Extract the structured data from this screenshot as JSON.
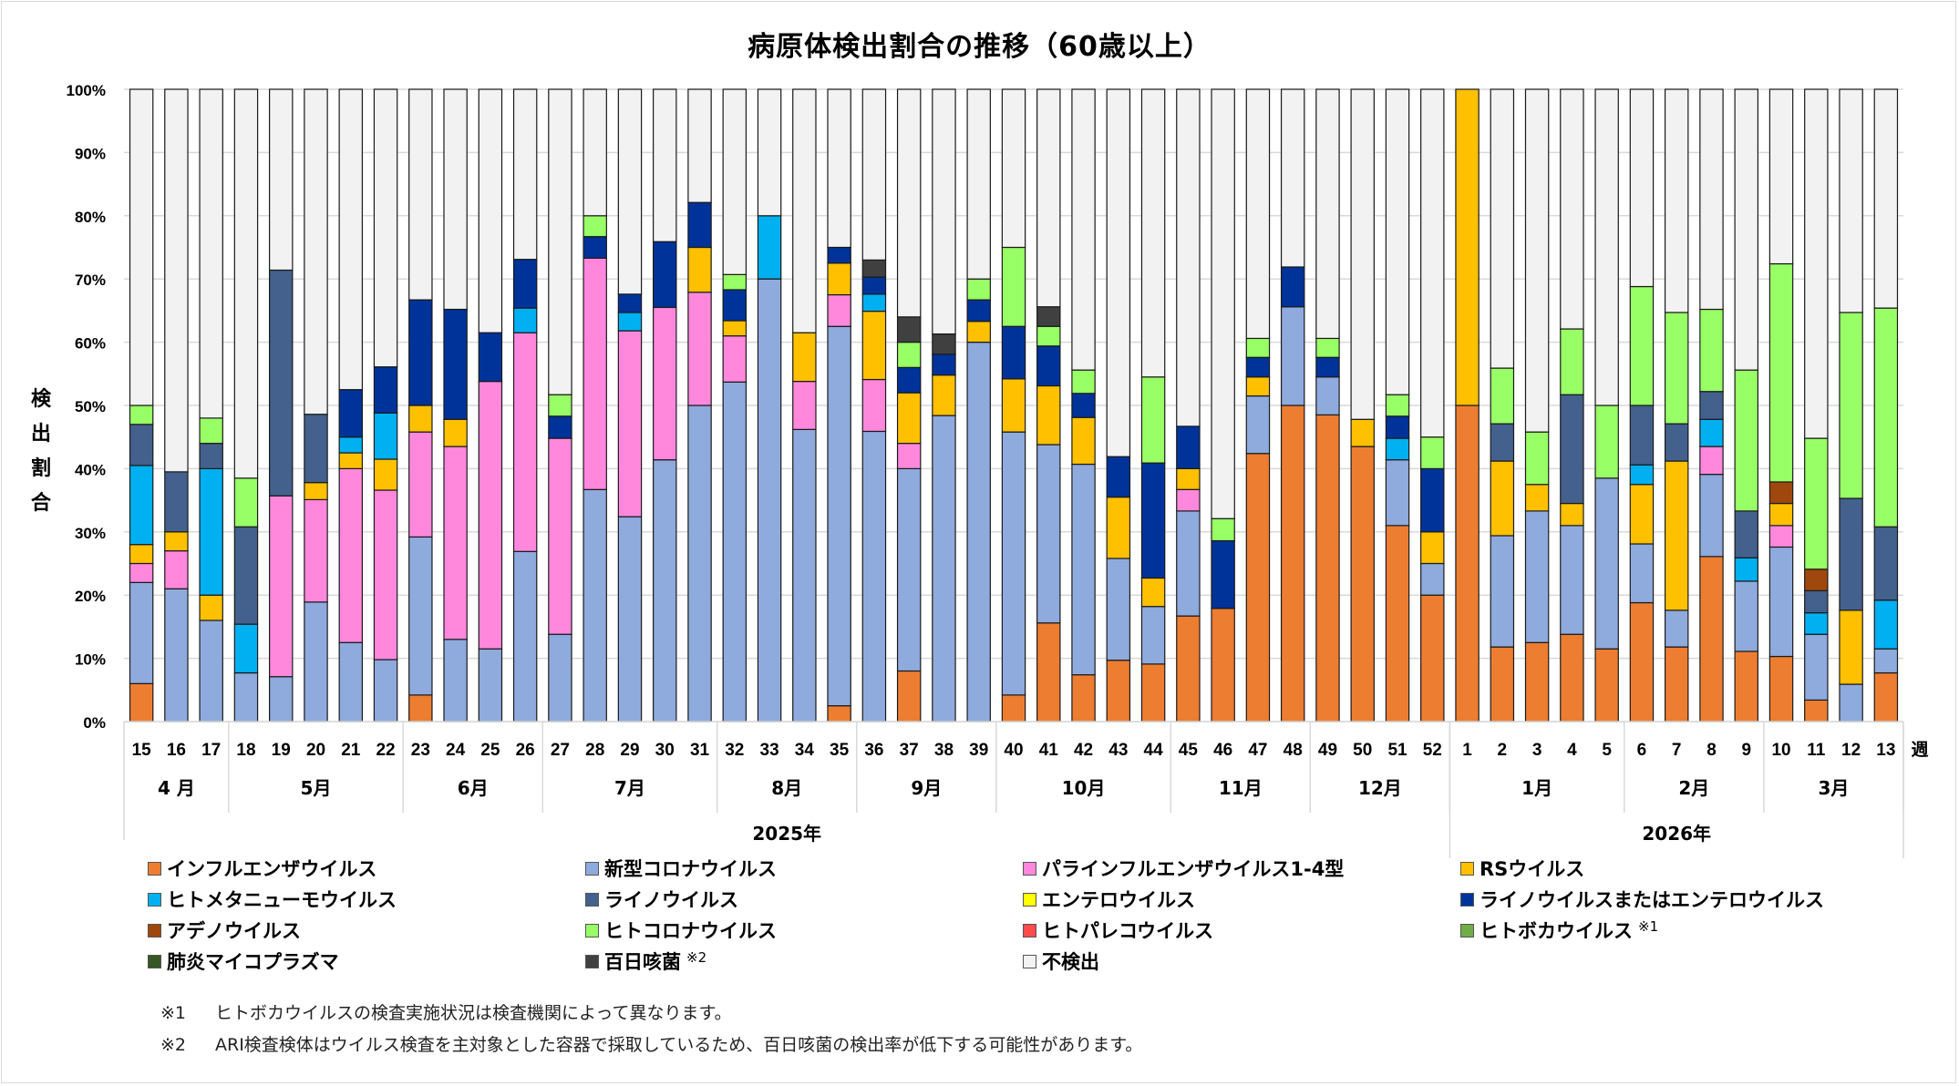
{
  "chart_data": {
    "type": "bar",
    "stacked": true,
    "title": "病原体検出割合の推移（60歳以上）",
    "ylabel": "検出割合",
    "xlabel": "週",
    "ylim": [
      0,
      100
    ],
    "yticks": [
      "0%",
      "10%",
      "20%",
      "30%",
      "40%",
      "50%",
      "60%",
      "70%",
      "80%",
      "90%",
      "100%"
    ],
    "grid": true,
    "legend_position": "bottom",
    "categories": [
      "15",
      "16",
      "17",
      "18",
      "19",
      "20",
      "21",
      "22",
      "23",
      "24",
      "25",
      "26",
      "27",
      "28",
      "29",
      "30",
      "31",
      "32",
      "33",
      "34",
      "35",
      "36",
      "37",
      "38",
      "39",
      "40",
      "41",
      "42",
      "43",
      "44",
      "45",
      "46",
      "47",
      "48",
      "49",
      "50",
      "51",
      "52",
      "1",
      "2",
      "3",
      "4",
      "5",
      "6",
      "7",
      "8",
      "9",
      "10",
      "11",
      "12",
      "13"
    ],
    "months": [
      {
        "label": "4 月",
        "weeks": 3
      },
      {
        "label": "5月",
        "weeks": 5
      },
      {
        "label": "6月",
        "weeks": 4
      },
      {
        "label": "7月",
        "weeks": 5
      },
      {
        "label": "8月",
        "weeks": 4
      },
      {
        "label": "9月",
        "weeks": 4
      },
      {
        "label": "10月",
        "weeks": 5
      },
      {
        "label": "11月",
        "weeks": 4
      },
      {
        "label": "12月",
        "weeks": 4
      },
      {
        "label": "1月",
        "weeks": 5
      },
      {
        "label": "2月",
        "weeks": 4
      },
      {
        "label": "3月",
        "weeks": 4
      }
    ],
    "years": [
      {
        "label": "2025年",
        "weeks": 38
      },
      {
        "label": "2026年",
        "weeks": 13
      }
    ],
    "series": [
      {
        "name": "インフルエンザウイルス",
        "color": "#ED7D31",
        "values": [
          6,
          0,
          0,
          0,
          0,
          0,
          0,
          0,
          4.2,
          0,
          0,
          0,
          0,
          0,
          0,
          0,
          0,
          0,
          0,
          0,
          2.5,
          0,
          8,
          0,
          0,
          4.2,
          15.6,
          7.4,
          9.7,
          9.1,
          16.7,
          17.9,
          42.4,
          50,
          48.5,
          43.5,
          31,
          20,
          50,
          11.8,
          12.5,
          13.8,
          11.5,
          18.8,
          11.8,
          26.1,
          11.1,
          10.3,
          3.4,
          0,
          7.7
        ]
      },
      {
        "name": "新型コロナウイルス",
        "color": "#8FAADC",
        "values": [
          16,
          21,
          16,
          7.7,
          7.1,
          18.9,
          12.5,
          9.8,
          25,
          13,
          11.5,
          26.9,
          13.8,
          36.7,
          32.4,
          41.4,
          50,
          53.7,
          70,
          46.2,
          60,
          45.9,
          32,
          48.4,
          60,
          41.6,
          28.2,
          33.3,
          16.1,
          9.1,
          16.6,
          0,
          9.1,
          15.6,
          6,
          0,
          10.4,
          5,
          0,
          17.6,
          20.8,
          17.2,
          27,
          9.3,
          5.8,
          13,
          11.1,
          17.3,
          10.4,
          5.9,
          3.8
        ]
      },
      {
        "name": "パラインフルエンザウイルス1-4型",
        "color": "#FF88DD",
        "values": [
          3,
          6,
          0,
          0,
          28.6,
          16.2,
          27.5,
          26.8,
          16.6,
          30.5,
          42.3,
          34.6,
          31,
          36.6,
          29.4,
          24.1,
          17.9,
          7.3,
          0,
          7.6,
          5,
          8.2,
          4,
          0,
          0,
          0,
          0,
          0,
          0,
          0,
          3.4,
          0,
          0,
          0,
          0,
          0,
          0,
          0,
          0,
          0,
          0,
          0,
          0,
          0,
          0,
          4.4,
          0,
          3.4,
          0,
          0,
          0
        ]
      },
      {
        "name": "RSウイルス",
        "color": "#FFC000",
        "values": [
          3,
          3,
          4,
          0,
          0,
          2.7,
          2.5,
          4.9,
          4.2,
          4.3,
          0,
          0,
          0,
          0,
          0,
          0,
          7.1,
          2.4,
          0,
          7.7,
          5,
          10.8,
          8,
          6.4,
          3.3,
          8.4,
          9.3,
          7.4,
          9.7,
          4.5,
          3.3,
          0,
          3,
          0,
          0,
          4.3,
          0,
          5,
          50,
          11.8,
          4.2,
          3.5,
          0,
          9.4,
          23.6,
          0,
          0,
          3.5,
          0,
          11.7,
          0
        ]
      },
      {
        "name": "ヒトメタニューモウイルス",
        "color": "#00B0F0",
        "values": [
          12.5,
          0,
          20,
          7.7,
          0,
          0,
          2.5,
          7.3,
          0,
          0,
          0,
          3.9,
          0,
          0,
          2.9,
          0,
          0,
          0,
          10,
          0,
          0,
          2.7,
          0,
          0,
          0,
          0,
          0,
          0,
          0,
          0,
          0,
          0,
          0,
          0,
          0,
          0,
          3.4,
          0,
          0,
          0,
          0,
          0,
          0,
          3.1,
          0,
          4.3,
          3.7,
          0,
          3.4,
          0,
          7.7
        ]
      },
      {
        "name": "ライノウイルス",
        "color": "#44608C",
        "values": [
          6.5,
          9.5,
          4,
          15.4,
          35.7,
          10.8,
          0,
          0,
          0,
          0,
          0,
          0,
          0,
          0,
          0,
          0,
          0,
          0,
          0,
          0,
          0,
          0,
          0,
          0,
          0,
          0,
          0,
          0,
          0,
          0,
          0,
          0,
          0,
          0,
          0,
          0,
          0,
          0,
          0,
          5.9,
          0,
          17.2,
          0,
          9.4,
          5.9,
          4.4,
          7.4,
          0,
          3.5,
          17.7,
          11.6
        ]
      },
      {
        "name": "エンテロウイルス",
        "color": "#FFFF00",
        "values": [
          0,
          0,
          0,
          0,
          0,
          0,
          0,
          0,
          0,
          0,
          0,
          0,
          0,
          0,
          0,
          0,
          0,
          0,
          0,
          0,
          0,
          0,
          0,
          0,
          0,
          0,
          0,
          0,
          0,
          0,
          0,
          0,
          0,
          0,
          0,
          0,
          0,
          0,
          0,
          0,
          0,
          0,
          0,
          0,
          0,
          0,
          0,
          0,
          0,
          0,
          0
        ]
      },
      {
        "name": "ライノウイルスまたはエンテロウイルス",
        "color": "#003399",
        "values": [
          0,
          0,
          0,
          0,
          0,
          0,
          7.5,
          7.3,
          16.7,
          17.4,
          7.7,
          7.7,
          3.5,
          3.4,
          2.9,
          10.4,
          7.1,
          4.9,
          0,
          0,
          2.5,
          2.7,
          4,
          3.3,
          3.4,
          8.3,
          6.3,
          3.8,
          6.4,
          18.2,
          6.7,
          10.7,
          3.1,
          6.3,
          3.1,
          0,
          3.5,
          10,
          0,
          0,
          0,
          0,
          0,
          0,
          0,
          0,
          0,
          0,
          0,
          0,
          0
        ]
      },
      {
        "name": "アデノウイルス",
        "color": "#9E480E",
        "values": [
          0,
          0,
          0,
          0,
          0,
          0,
          0,
          0,
          0,
          0,
          0,
          0,
          0,
          0,
          0,
          0,
          0,
          0,
          0,
          0,
          0,
          0,
          0,
          0,
          0,
          0,
          0,
          0,
          0,
          0,
          0,
          0,
          0,
          0,
          0,
          0,
          0,
          0,
          0,
          0,
          0,
          0,
          0,
          0,
          0,
          0,
          0,
          3.4,
          3.4,
          0,
          0
        ]
      },
      {
        "name": "ヒトコロナウイルス",
        "color": "#99FF66",
        "values": [
          3,
          0,
          4,
          7.7,
          0,
          0,
          0,
          0,
          0,
          0,
          0,
          0,
          3.4,
          3.3,
          0,
          0,
          0,
          2.4,
          0,
          0,
          0,
          0,
          4,
          0,
          3.3,
          12.5,
          3.1,
          3.7,
          0,
          13.6,
          0,
          3.5,
          3,
          0,
          3,
          0,
          3.4,
          5,
          0,
          8.8,
          8.3,
          10.4,
          11.5,
          18.8,
          17.6,
          13,
          22.3,
          34.5,
          20.7,
          29.4,
          34.6
        ]
      },
      {
        "name": "ヒトパレコウイルス",
        "color": "#FF4B4B",
        "values": [
          0,
          0,
          0,
          0,
          0,
          0,
          0,
          0,
          0,
          0,
          0,
          0,
          0,
          0,
          0,
          0,
          0,
          0,
          0,
          0,
          0,
          0,
          0,
          0,
          0,
          0,
          0,
          0,
          0,
          0,
          0,
          0,
          0,
          0,
          0,
          0,
          0,
          0,
          0,
          0,
          0,
          0,
          0,
          0,
          0,
          0,
          0,
          0,
          0,
          0,
          0
        ]
      },
      {
        "name": "ヒトボカウイルス",
        "note": "※1",
        "color": "#70AD47",
        "values": [
          0,
          0,
          0,
          0,
          0,
          0,
          0,
          0,
          0,
          0,
          0,
          0,
          0,
          0,
          0,
          0,
          0,
          0,
          0,
          0,
          0,
          0,
          0,
          0,
          0,
          0,
          0,
          0,
          0,
          0,
          0,
          0,
          0,
          0,
          0,
          0,
          0,
          0,
          0,
          0,
          0,
          0,
          0,
          0,
          0,
          0,
          0,
          0,
          0,
          0,
          0
        ]
      },
      {
        "name": "肺炎マイコプラズマ",
        "color": "#375623",
        "values": [
          0,
          0,
          0,
          0,
          0,
          0,
          0,
          0,
          0,
          0,
          0,
          0,
          0,
          0,
          0,
          0,
          0,
          0,
          0,
          0,
          0,
          0,
          0,
          0,
          0,
          0,
          0,
          0,
          0,
          0,
          0,
          0,
          0,
          0,
          0,
          0,
          0,
          0,
          0,
          0,
          0,
          0,
          0,
          0,
          0,
          0,
          0,
          0,
          0,
          0,
          0
        ]
      },
      {
        "name": "百日咳菌",
        "note": "※2",
        "color": "#404040",
        "values": [
          0,
          0,
          0,
          0,
          0,
          0,
          0,
          0,
          0,
          0,
          0,
          0,
          0,
          0,
          0,
          0,
          0,
          0,
          0,
          0,
          0,
          2.7,
          4,
          3.2,
          0,
          0,
          3.1,
          0,
          0,
          0,
          0,
          0,
          0,
          0,
          0,
          0,
          0,
          0,
          0,
          0,
          0,
          0,
          0,
          0,
          0,
          0,
          0,
          0,
          0,
          0,
          0
        ]
      },
      {
        "name": "不検出",
        "color": "#F2F2F2",
        "values": [
          50,
          60.5,
          52,
          61.5,
          28.6,
          51.4,
          47.5,
          43.9,
          33.3,
          34.8,
          38.5,
          26.9,
          48.3,
          20,
          32.4,
          24.1,
          17.9,
          29.3,
          20,
          38.5,
          25,
          27,
          36,
          38.7,
          30,
          25,
          34.4,
          44.4,
          58.1,
          45.5,
          53.3,
          67.9,
          39.4,
          28.1,
          39.4,
          52.2,
          48.3,
          55,
          0,
          44.1,
          54.2,
          37.9,
          50,
          31.2,
          35.3,
          34.8,
          44.4,
          27.6,
          55.2,
          35.3,
          34.6
        ]
      }
    ]
  },
  "notes": [
    {
      "mark": "※1",
      "text": "ヒトボカウイルスの検査実施状況は検査機関によって異なります。"
    },
    {
      "mark": "※2",
      "text": "ARI検査検体はウイルス検査を主対象とした容器で採取しているため、百日咳菌の検出率が低下する可能性があります。"
    }
  ]
}
